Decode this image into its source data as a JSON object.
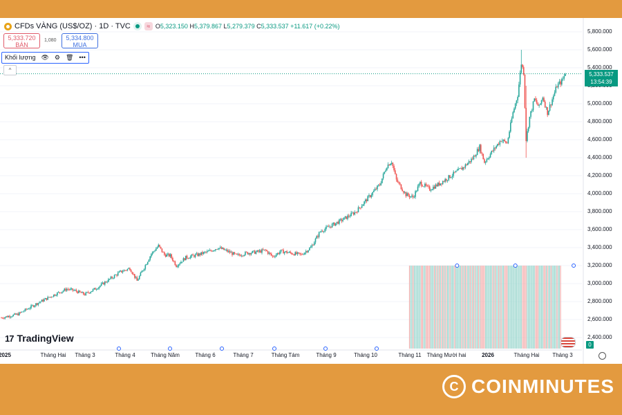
{
  "header": {
    "symbol": "CFDs VÀNG (US$/OZ) · 1D · TVC",
    "ohlc": {
      "o": "5,323.150",
      "h": "5,379.867",
      "l": "5,279.379",
      "c": "5,333.537",
      "change": "+11.617 (+0.22%)"
    }
  },
  "trade": {
    "sell_price": "5,333.720",
    "sell_label": "BÁN",
    "spread": "1,080",
    "buy_price": "5,334.800",
    "buy_label": "MUA"
  },
  "volume_legend": {
    "label": "Khối lượng"
  },
  "price_tag": {
    "price": "5,333.537",
    "countdown": "13:54:39"
  },
  "chart_data": {
    "type": "candlestick",
    "title": "CFDs VÀNG (US$/OZ) · 1D · TVC",
    "y_axis_labels": [
      "5,800.000",
      "5,600.000",
      "5,400.000",
      "5,200.000",
      "5,000.000",
      "4,800.000",
      "4,600.000",
      "4,400.000",
      "4,200.000",
      "4,000.000",
      "3,800.000",
      "3,600.000",
      "3,400.000",
      "3,200.000",
      "3,000.000",
      "2,800.000",
      "2,600.000",
      "2,400.000"
    ],
    "ylim": [
      2300,
      5850
    ],
    "x_axis_labels": [
      "2025",
      "Tháng Hai",
      "Tháng 3",
      "Tháng 4",
      "Tháng Năm",
      "Tháng 6",
      "Tháng 7",
      "Tháng Tám",
      "Tháng 9",
      "Tháng 10",
      "Tháng 11",
      "Tháng Mười hai",
      "2026",
      "Tháng Hai",
      "Tháng 3"
    ],
    "anchors": [
      {
        "t": 0,
        "p": 2620
      },
      {
        "t": 14,
        "p": 2660
      },
      {
        "t": 30,
        "p": 2780
      },
      {
        "t": 45,
        "p": 2880
      },
      {
        "t": 55,
        "p": 2940
      },
      {
        "t": 62,
        "p": 2920
      },
      {
        "t": 70,
        "p": 2880
      },
      {
        "t": 80,
        "p": 2950
      },
      {
        "t": 90,
        "p": 3040
      },
      {
        "t": 100,
        "p": 3130
      },
      {
        "t": 108,
        "p": 3170
      },
      {
        "t": 114,
        "p": 3030
      },
      {
        "t": 120,
        "p": 3180
      },
      {
        "t": 126,
        "p": 3330
      },
      {
        "t": 132,
        "p": 3420
      },
      {
        "t": 137,
        "p": 3320
      },
      {
        "t": 142,
        "p": 3310
      },
      {
        "t": 147,
        "p": 3200
      },
      {
        "t": 155,
        "p": 3290
      },
      {
        "t": 165,
        "p": 3320
      },
      {
        "t": 175,
        "p": 3360
      },
      {
        "t": 182,
        "p": 3400
      },
      {
        "t": 190,
        "p": 3360
      },
      {
        "t": 198,
        "p": 3310
      },
      {
        "t": 206,
        "p": 3340
      },
      {
        "t": 214,
        "p": 3350
      },
      {
        "t": 222,
        "p": 3370
      },
      {
        "t": 228,
        "p": 3300
      },
      {
        "t": 235,
        "p": 3360
      },
      {
        "t": 243,
        "p": 3340
      },
      {
        "t": 252,
        "p": 3320
      },
      {
        "t": 260,
        "p": 3400
      },
      {
        "t": 268,
        "p": 3580
      },
      {
        "t": 278,
        "p": 3650
      },
      {
        "t": 288,
        "p": 3720
      },
      {
        "t": 298,
        "p": 3800
      },
      {
        "t": 308,
        "p": 3950
      },
      {
        "t": 318,
        "p": 4100
      },
      {
        "t": 324,
        "p": 4310
      },
      {
        "t": 328,
        "p": 4360
      },
      {
        "t": 332,
        "p": 4150
      },
      {
        "t": 340,
        "p": 3990
      },
      {
        "t": 346,
        "p": 3960
      },
      {
        "t": 352,
        "p": 4120
      },
      {
        "t": 360,
        "p": 4050
      },
      {
        "t": 368,
        "p": 4110
      },
      {
        "t": 378,
        "p": 4200
      },
      {
        "t": 388,
        "p": 4290
      },
      {
        "t": 396,
        "p": 4390
      },
      {
        "t": 402,
        "p": 4520
      },
      {
        "t": 406,
        "p": 4350
      },
      {
        "t": 412,
        "p": 4460
      },
      {
        "t": 420,
        "p": 4600
      },
      {
        "t": 425,
        "p": 4560
      },
      {
        "t": 430,
        "p": 4900
      },
      {
        "t": 434,
        "p": 5100
      },
      {
        "t": 437,
        "p": 5450
      },
      {
        "t": 439,
        "p": 5350
      },
      {
        "t": 441,
        "p": 4600
      },
      {
        "t": 444,
        "p": 4850
      },
      {
        "t": 448,
        "p": 5050
      },
      {
        "t": 452,
        "p": 4960
      },
      {
        "t": 455,
        "p": 5080
      },
      {
        "t": 459,
        "p": 4900
      },
      {
        "t": 463,
        "p": 5050
      },
      {
        "t": 467,
        "p": 5200
      },
      {
        "t": 471,
        "p": 5250
      },
      {
        "t": 474,
        "p": 5333.537
      }
    ],
    "volume": {
      "visible": true,
      "note": "daily volume bars shown only for recent period"
    },
    "last_price": 5333.537,
    "colors": {
      "up": "#26a69a",
      "down": "#ef5350",
      "grid": "#f0f3fa",
      "last_line": "#089981"
    }
  },
  "branding": {
    "tradingview": "TradingView",
    "coinminutes": "COINMINUTES",
    "coin_glyph": "C"
  },
  "badges": {
    "zero": "0"
  }
}
